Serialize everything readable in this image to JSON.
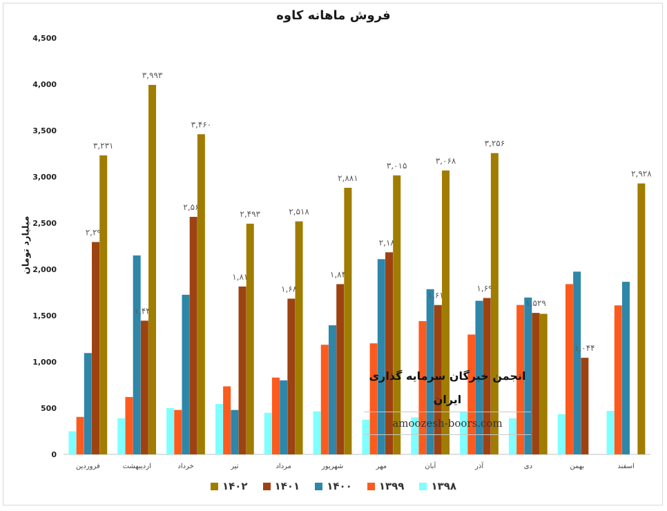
{
  "chart_data": {
    "type": "bar",
    "title": "فروش ماهانه کاوه",
    "ylabel": "میلیارد تومان",
    "ylim": [
      0,
      4500
    ],
    "yticks": [
      0,
      500,
      1000,
      1500,
      2000,
      2500,
      3000,
      3500,
      4000,
      4500
    ],
    "ytick_labels": [
      "0",
      "500",
      "1,000",
      "1,500",
      "2,000",
      "2,500",
      "3,000",
      "3,500",
      "4,000",
      "4,500"
    ],
    "categories": [
      "فروردین",
      "اردیبهشت",
      "خرداد",
      "تیر",
      "مرداد",
      "شهریور",
      "مهر",
      "آبان",
      "آذر",
      "دی",
      "بهمن",
      "اسفند"
    ],
    "grid": false,
    "legend_position": "bottom",
    "series": [
      {
        "name": "۱۳۹۸",
        "color": "#7fffff",
        "values": [
          250,
          390,
          500,
          545,
          450,
          465,
          375,
          400,
          460,
          390,
          435,
          470
        ],
        "labels": [
          null,
          null,
          null,
          null,
          null,
          null,
          null,
          null,
          null,
          null,
          null,
          null
        ]
      },
      {
        "name": "۱۳۹۹",
        "color": "#fd5a1e",
        "values": [
          405,
          620,
          480,
          735,
          830,
          1185,
          1200,
          1440,
          1295,
          1615,
          1840,
          1610
        ],
        "labels": [
          null,
          null,
          null,
          null,
          null,
          null,
          null,
          null,
          null,
          null,
          null,
          null
        ]
      },
      {
        "name": "۱۴۰۰",
        "color": "#2e86a8",
        "values": [
          1095,
          2150,
          1725,
          480,
          800,
          1395,
          2110,
          1785,
          1660,
          1695,
          1975,
          1865
        ],
        "labels": [
          null,
          null,
          null,
          null,
          null,
          null,
          null,
          null,
          null,
          null,
          null,
          null
        ]
      },
      {
        "name": "۱۴۰۱",
        "color": "#9c4311",
        "values": [
          2295,
          1445,
          2567,
          1814,
          1683,
          1840,
          2184,
          1614,
          1690,
          1529,
          1044,
          null
        ],
        "labels": [
          "۲,۲۹۵",
          "۱,۴۴۵",
          "۲,۵۶۷",
          "۱,۸۱۴",
          "۱,۶۸۳",
          "۱,۸۴۰",
          "۲,۱۸۴",
          "۱,۶۱۴",
          "۱,۶۹۰",
          "۱,۵۲۹",
          "۱,۰۴۴",
          null
        ]
      },
      {
        "name": "۱۴۰۲",
        "color": "#a07c00",
        "values": [
          3231,
          3993,
          3460,
          2493,
          2518,
          2881,
          3015,
          3068,
          3256,
          1519,
          null,
          2928
        ],
        "labels": [
          "۳,۲۳۱",
          "۳,۹۹۳",
          "۳,۴۶۰",
          "۲,۴۹۳",
          "۲,۵۱۸",
          "۲,۸۸۱",
          "۳,۰۱۵",
          "۳,۰۶۸",
          "۳,۲۵۶",
          null,
          null,
          "۲,۹۲۸"
        ]
      }
    ]
  },
  "watermark": {
    "title": "انجمن خبرگان سرمایه گذاری ایران",
    "url": "amoozesh-boors.com"
  }
}
